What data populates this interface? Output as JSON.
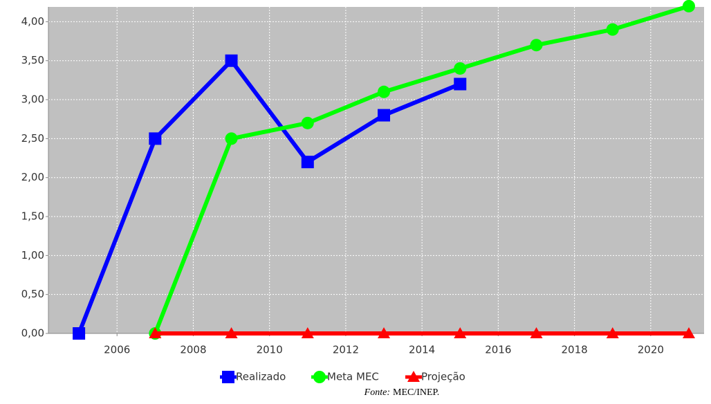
{
  "chart_data": {
    "type": "line",
    "xlim": [
      2004.2,
      2021.4
    ],
    "xticks": [
      2006,
      2008,
      2010,
      2012,
      2014,
      2016,
      2018,
      2020
    ],
    "ylim": [
      0,
      4.19
    ],
    "yticks": [
      {
        "value": 0,
        "label": "0,00"
      },
      {
        "value": 0.5,
        "label": "0,50"
      },
      {
        "value": 1,
        "label": "1,00"
      },
      {
        "value": 1.5,
        "label": "1,50"
      },
      {
        "value": 2,
        "label": "2,00"
      },
      {
        "value": 2.5,
        "label": "2,50"
      },
      {
        "value": 3,
        "label": "3,00"
      },
      {
        "value": 3.5,
        "label": "3,50"
      },
      {
        "value": 4,
        "label": "4,00"
      }
    ],
    "grid": true,
    "background": "#c0c0c0",
    "legend": "bottom",
    "series": [
      {
        "name": "Realizado",
        "color": "#0000ff",
        "marker": "square",
        "x": [
          2005,
          2007,
          2009,
          2011,
          2013,
          2015
        ],
        "values": [
          0,
          2.5,
          3.5,
          2.2,
          2.8,
          3.2
        ]
      },
      {
        "name": "Meta MEC",
        "color": "#00ff00",
        "marker": "circle",
        "x": [
          2007,
          2009,
          2011,
          2013,
          2015,
          2017,
          2019,
          2021
        ],
        "values": [
          0,
          2.5,
          2.7,
          3.1,
          3.4,
          3.7,
          3.9,
          4.2
        ]
      },
      {
        "name": "Projeção",
        "color": "#ff0000",
        "marker": "triangle",
        "x": [
          2007,
          2009,
          2011,
          2013,
          2015,
          2017,
          2019,
          2021
        ],
        "values": [
          0,
          0,
          0,
          0,
          0,
          0,
          0,
          0
        ]
      }
    ],
    "source": {
      "label": "Fonte:",
      "text": "MEC/INEP."
    }
  }
}
